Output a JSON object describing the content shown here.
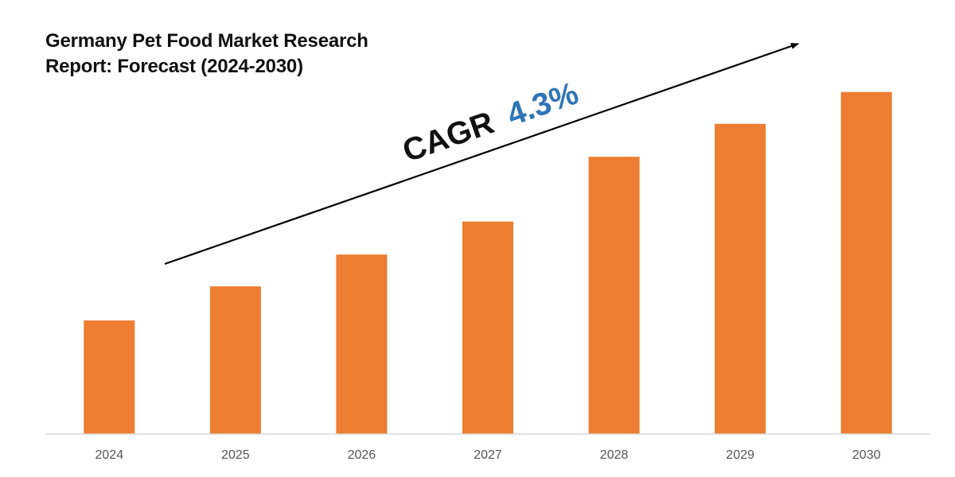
{
  "chart_data": {
    "type": "bar",
    "title_lines": [
      "Germany Pet Food Market Research",
      "Report: Forecast (2024-2030)"
    ],
    "categories": [
      "2024",
      "2025",
      "2026",
      "2027",
      "2028",
      "2029",
      "2030"
    ],
    "values": [
      1.0,
      1.3,
      1.58,
      1.87,
      2.44,
      2.73,
      3.01
    ],
    "ylim": [
      0,
      3.4
    ],
    "xlabel": "",
    "ylabel": "",
    "grid": false,
    "annotation": {
      "prefix": "CAGR",
      "value": "4.3%"
    },
    "colors": {
      "bar": "#ED7D31",
      "cagr_value": "#2E75B6",
      "cagr_prefix": "#111111",
      "arrow": "#000000",
      "axis": "#D9D9D9"
    }
  }
}
